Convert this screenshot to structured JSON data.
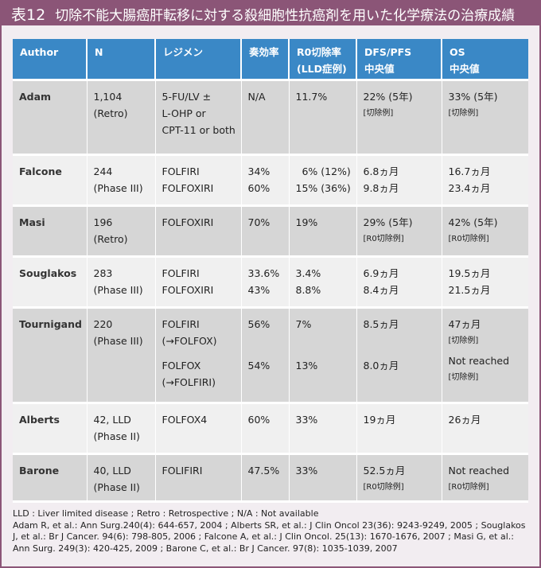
{
  "title": {
    "number": "表12",
    "text": "切除不能大腸癌肝転移に対する殺細胞性抗癌剤を用いた化学療法の治療成績"
  },
  "table": {
    "headers": [
      {
        "line1": "Author",
        "line2": ""
      },
      {
        "line1": "N",
        "line2": ""
      },
      {
        "line1": "レジメン",
        "line2": ""
      },
      {
        "line1": "奏効率",
        "line2": ""
      },
      {
        "line1": "R0切除率",
        "line2": "(LLD症例)"
      },
      {
        "line1": "DFS/PFS",
        "line2": "中央値"
      },
      {
        "line1": "OS",
        "line2": "中央値"
      }
    ],
    "rows": [
      {
        "author": "Adam",
        "n": [
          "1,104",
          "(Retro)"
        ],
        "regimen": [
          "5-FU/LV ±",
          "L-OHP or",
          "CPT-11 or  both"
        ],
        "response": [
          "N/A"
        ],
        "r0": [
          "11.7%"
        ],
        "dfs": [
          "22% (5年)",
          "[切除例]"
        ],
        "os": [
          "33% (5年)",
          "[切除例]"
        ]
      },
      {
        "author": "Falcone",
        "n": [
          "244",
          "(Phase III)"
        ],
        "regimen": [
          "FOLFIRI",
          "FOLFOXIRI"
        ],
        "response": [
          "34%",
          "60%"
        ],
        "r0": [
          "  6% (12%)",
          "15% (36%)"
        ],
        "dfs": [
          "6.8ヵ月",
          "9.8ヵ月"
        ],
        "os": [
          "16.7ヵ月",
          "23.4ヵ月"
        ]
      },
      {
        "author": "Masi",
        "n": [
          "196",
          "(Retro)"
        ],
        "regimen": [
          "FOLFOXIRI"
        ],
        "response": [
          "70%"
        ],
        "r0": [
          "19%"
        ],
        "dfs": [
          "29% (5年)",
          "[R0切除例]"
        ],
        "os": [
          "42% (5年)",
          "[R0切除例]"
        ]
      },
      {
        "author": "Souglakos",
        "n": [
          "283",
          "(Phase III)"
        ],
        "regimen": [
          "FOLFIRI",
          "FOLFOXIRI"
        ],
        "response": [
          "33.6%",
          "43%"
        ],
        "r0": [
          "3.4%",
          "8.8%"
        ],
        "dfs": [
          "6.9ヵ月",
          "8.4ヵ月"
        ],
        "os": [
          "19.5ヵ月",
          "21.5ヵ月"
        ]
      },
      {
        "author": "Tournigand",
        "n": [
          "220",
          "(Phase III)"
        ],
        "regimen": [
          "FOLFIRI",
          "(→FOLFOX)",
          "FOLFOX",
          "(→FOLFIRI)"
        ],
        "response": [
          "56%",
          "54%"
        ],
        "r0": [
          "7%",
          "13%"
        ],
        "dfs": [
          "8.5ヵ月",
          "8.0ヵ月"
        ],
        "os": [
          "47ヵ月",
          "[切除例]",
          "Not reached",
          "[切除例]"
        ]
      },
      {
        "author": "Alberts",
        "n": [
          "42, LLD",
          "(Phase II)"
        ],
        "regimen": [
          "FOLFOX4"
        ],
        "response": [
          "60%"
        ],
        "r0": [
          "33%"
        ],
        "dfs": [
          "19ヵ月"
        ],
        "os": [
          "26ヵ月"
        ]
      },
      {
        "author": "Barone",
        "n": [
          "40, LLD",
          "(Phase II)"
        ],
        "regimen": [
          "FOLIFIRI"
        ],
        "response": [
          "47.5%"
        ],
        "r0": [
          "33%"
        ],
        "dfs": [
          "52.5ヵ月",
          "[R0切除例]"
        ],
        "os": [
          "Not reached",
          "[R0切除例]"
        ]
      }
    ]
  },
  "notes": {
    "abbrev": "LLD : Liver limited disease ;  Retro : Retrospective ; N/A : Not available",
    "refs": "Adam R, et al.: Ann Surg.240(4): 644-657, 2004 ; Alberts SR, et al.: J Clin Oncol 23(36): 9243-9249, 2005 ; Souglakos J, et al.: Br J Cancer. 94(6): 798-805, 2006 ; Falcone A, et al.: J Clin Oncol. 25(13): 1670-1676, 2007 ; Masi G, et al.: Ann Surg. 249(3): 420-425, 2009 ; Barone C, et al.: Br J Cancer. 97(8): 1035-1039, 2007"
  },
  "colors": {
    "title_bar": "#8b5577",
    "header": "#3a88c6",
    "row_dark": "#d6d6d6",
    "row_light": "#f0f0f0",
    "panel": "#f2edf1"
  }
}
